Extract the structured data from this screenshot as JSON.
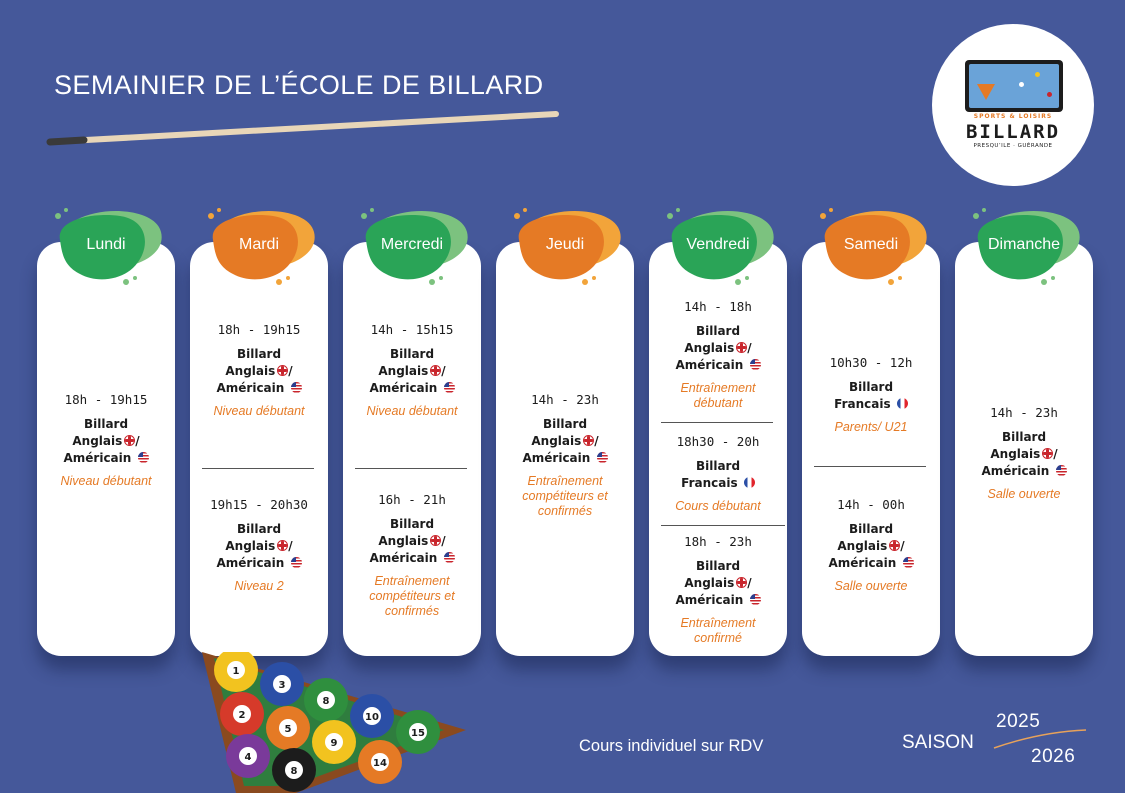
{
  "title": "SEMAINIER DE L’ÉCOLE DE BILLARD",
  "logo": {
    "subtitle": "SPORTS & LOISIRS",
    "name": "BILLARD",
    "location": "PRESQU’ILE · GUÉRANDE"
  },
  "days": [
    {
      "name": "Lundi",
      "slots": [
        {
          "time": "18h - 19h15",
          "lines": [
            "Billard",
            "Anglais",
            "Américain"
          ],
          "flags": [
            "uk",
            "us"
          ],
          "note": "Niveau débutant"
        }
      ]
    },
    {
      "name": "Mardi",
      "slots": [
        {
          "time": "18h - 19h15",
          "lines": [
            "Billard",
            "Anglais",
            "Américain"
          ],
          "flags": [
            "uk",
            "us"
          ],
          "note": "Niveau débutant"
        },
        {
          "time": "19h15 - 20h30",
          "lines": [
            "Billard",
            "Anglais",
            "Américain"
          ],
          "flags": [
            "uk",
            "us"
          ],
          "note": "Niveau 2"
        }
      ]
    },
    {
      "name": "Mercredi",
      "slots": [
        {
          "time": "14h - 15h15",
          "lines": [
            "Billard",
            "Anglais",
            "Américain"
          ],
          "flags": [
            "uk",
            "us"
          ],
          "note": "Niveau débutant"
        },
        {
          "time": "16h - 21h",
          "lines": [
            "Billard",
            "Anglais",
            "Américain"
          ],
          "flags": [
            "uk",
            "us"
          ],
          "note": "Entraînement compétiteurs et confirmés"
        }
      ]
    },
    {
      "name": "Jeudi",
      "slots": [
        {
          "time": "14h - 23h",
          "lines": [
            "Billard",
            "Anglais",
            "Américain"
          ],
          "flags": [
            "uk",
            "us"
          ],
          "note": "Entraînement compétiteurs et confirmés"
        }
      ]
    },
    {
      "name": "Vendredi",
      "slots": [
        {
          "time": "14h - 18h",
          "lines": [
            "Billard",
            "Anglais",
            "Américain"
          ],
          "flags": [
            "uk",
            "us"
          ],
          "note": "Entraînement débutant"
        },
        {
          "time": "18h30 - 20h",
          "lines": [
            "Billard",
            "Francais"
          ],
          "flags": [
            "fr"
          ],
          "note": "Cours débutant"
        },
        {
          "time": "18h - 23h",
          "lines": [
            "Billard",
            "Anglais",
            "Américain"
          ],
          "flags": [
            "uk",
            "us"
          ],
          "note": "Entraînement confirmé"
        }
      ]
    },
    {
      "name": "Samedi",
      "slots": [
        {
          "time": "10h30 - 12h",
          "lines": [
            "Billard",
            "Francais"
          ],
          "flags": [
            "fr"
          ],
          "note": "Parents/ U21"
        },
        {
          "time": "14h - 00h",
          "lines": [
            "Billard",
            "Anglais",
            "Américain"
          ],
          "flags": [
            "uk",
            "us"
          ],
          "note": "Salle ouverte"
        }
      ]
    },
    {
      "name": "Dimanche",
      "slots": [
        {
          "time": "14h - 23h",
          "lines": [
            "Billard",
            "Anglais",
            "Américain"
          ],
          "flags": [
            "uk",
            "us"
          ],
          "note": "Salle ouverte"
        }
      ]
    }
  ],
  "footer": {
    "note": "Cours individuel sur RDV",
    "season_label": "SAISON",
    "year_start": "2025",
    "year_end": "2026"
  },
  "rack_balls": [
    "1",
    "3",
    "8",
    "2",
    "5",
    "10",
    "4",
    "9",
    "15",
    "8",
    "14"
  ],
  "colors": {
    "background": "#45589a",
    "green": "#2aa457",
    "orange": "#e57a25",
    "note_orange": "#e57a25"
  }
}
